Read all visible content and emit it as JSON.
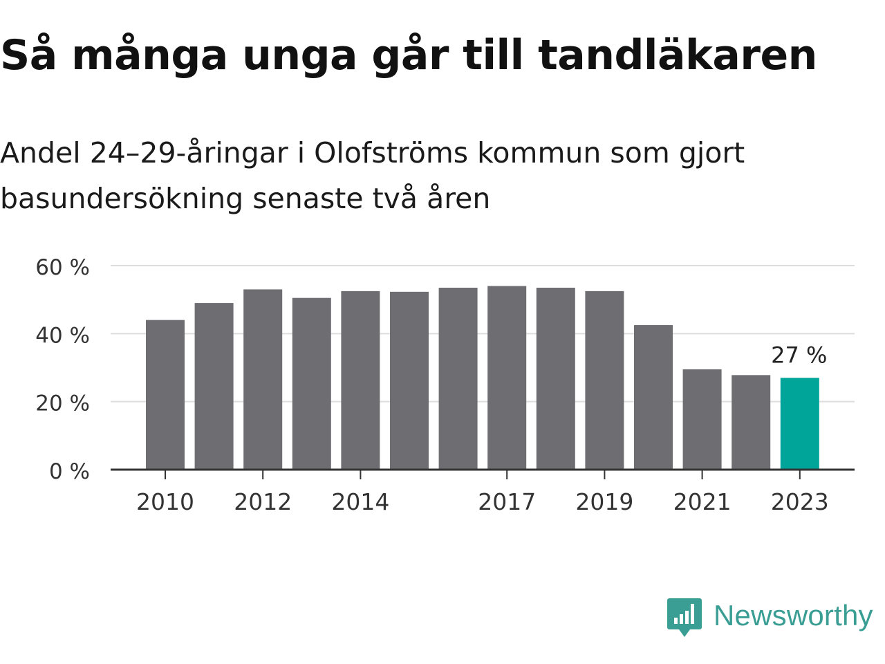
{
  "title": "Så många unga går till tandläkaren",
  "subtitle": "Andel 24–29-åringar i Olofströms kommun som gjort basundersökning senaste två åren",
  "chart_data": {
    "type": "bar",
    "categories": [
      "2010",
      "2011",
      "2012",
      "2013",
      "2014",
      "2015",
      "2016",
      "2017",
      "2018",
      "2019",
      "2020",
      "2021",
      "2022",
      "2023"
    ],
    "values": [
      44,
      49,
      53,
      50.5,
      52.5,
      52.3,
      53.5,
      54,
      53.5,
      52.5,
      42.5,
      29.5,
      27.8,
      27
    ],
    "x_tick_labels": [
      "2010",
      "2012",
      "2014",
      "2017",
      "2019",
      "2021",
      "2023"
    ],
    "y_ticks": [
      "0 %",
      "20 %",
      "40 %",
      "60 %"
    ],
    "ylim": [
      0,
      60
    ],
    "grid": true,
    "highlight_category": "2023",
    "annotation": "27 %",
    "colors": {
      "bar": "#6e6d72",
      "highlight": "#00a59a",
      "grid": "#dddddd",
      "axis": "#333333"
    }
  },
  "brand": {
    "name": "Newsworthy",
    "icon": "newsworthy-logo-icon",
    "color": "#3a9e94"
  }
}
